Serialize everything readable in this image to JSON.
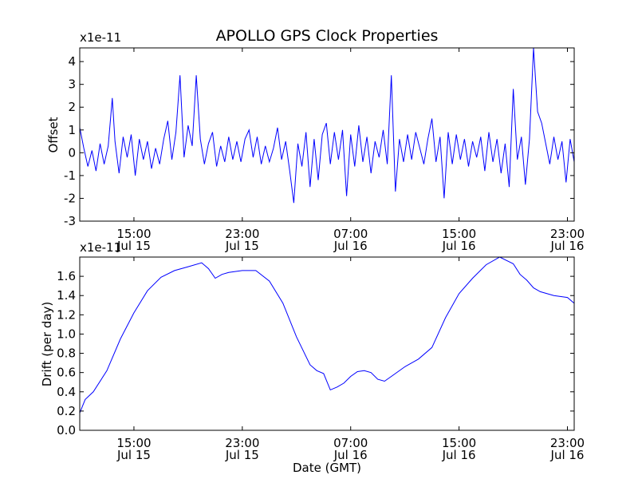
{
  "chart_data": {
    "title": "APOLLO GPS Clock Properties",
    "xlabel": "Date (GMT)",
    "x_tick_labels": [
      {
        "time": "15:00",
        "date": "Jul 15"
      },
      {
        "time": "23:00",
        "date": "Jul 15"
      },
      {
        "time": "07:00",
        "date": "Jul 16"
      },
      {
        "time": "15:00",
        "date": "Jul 16"
      },
      {
        "time": "23:00",
        "date": "Jul 16"
      }
    ],
    "x_tick_hours": [
      15,
      23,
      31,
      39,
      47
    ],
    "x_range_hours": [
      11,
      47.5
    ],
    "charts": [
      {
        "type": "line",
        "ylabel": "Offset",
        "multiplier": "x1e-11",
        "ylim": [
          -3,
          4.6
        ],
        "y_ticks": [
          -3,
          -2,
          -1,
          0,
          1,
          2,
          3,
          4
        ],
        "y_tick_labels": [
          "-3",
          "-2",
          "-1",
          "0",
          "1",
          "2",
          "3",
          "4"
        ],
        "color": "#0000ff",
        "series": [
          {
            "x": [
              11.0,
              11.3,
              11.6,
              11.9,
              12.2,
              12.5,
              12.8,
              13.1,
              13.4,
              13.6,
              13.9,
              14.2,
              14.5,
              14.8,
              15.1,
              15.4,
              15.7,
              16.0,
              16.3,
              16.6,
              16.9,
              17.2,
              17.5,
              17.8,
              18.1,
              18.4,
              18.7,
              19.0,
              19.3,
              19.6,
              19.9,
              20.2,
              20.5,
              20.8,
              21.1,
              21.4,
              21.7,
              22.0,
              22.3,
              22.6,
              22.9,
              23.2,
              23.5,
              23.8,
              24.1,
              24.4,
              24.7,
              25.0,
              25.3,
              25.6,
              25.9,
              26.2,
              26.5,
              26.8,
              27.1,
              27.4,
              27.7,
              28.0,
              28.3,
              28.6,
              28.9,
              29.2,
              29.5,
              29.8,
              30.1,
              30.4,
              30.7,
              31.0,
              31.3,
              31.6,
              31.9,
              32.2,
              32.5,
              32.8,
              33.1,
              33.4,
              33.7,
              34.0,
              34.3,
              34.6,
              34.9,
              35.2,
              35.5,
              35.8,
              36.1,
              36.4,
              36.7,
              37.0,
              37.3,
              37.6,
              37.9,
              38.2,
              38.5,
              38.8,
              39.1,
              39.4,
              39.7,
              40.0,
              40.3,
              40.6,
              40.9,
              41.2,
              41.5,
              41.8,
              42.1,
              42.4,
              42.7,
              43.0,
              43.3,
              43.6,
              43.9,
              44.2,
              44.5,
              44.8,
              45.1,
              45.4,
              45.7,
              46.0,
              46.3,
              46.6,
              46.9,
              47.2,
              47.5
            ],
            "y": [
              1.1,
              0.2,
              -0.6,
              0.1,
              -0.8,
              0.4,
              -0.5,
              0.3,
              2.4,
              0.5,
              -0.9,
              0.7,
              -0.2,
              0.8,
              -1.0,
              0.6,
              -0.3,
              0.5,
              -0.7,
              0.2,
              -0.5,
              0.6,
              1.4,
              -0.3,
              0.9,
              3.4,
              -0.2,
              1.2,
              0.3,
              3.4,
              0.6,
              -0.5,
              0.4,
              0.9,
              -0.6,
              0.3,
              -0.4,
              0.7,
              -0.3,
              0.5,
              -0.4,
              0.6,
              1.0,
              -0.2,
              0.7,
              -0.5,
              0.3,
              -0.4,
              0.2,
              1.1,
              -0.3,
              0.5,
              -0.8,
              -2.2,
              0.4,
              -0.6,
              0.9,
              -1.5,
              0.6,
              -1.2,
              0.8,
              1.3,
              -0.5,
              0.9,
              -0.3,
              1.0,
              -1.9,
              0.8,
              -0.6,
              1.2,
              -0.4,
              0.7,
              -0.9,
              0.5,
              -0.2,
              1.0,
              -0.5,
              3.4,
              -1.7,
              0.6,
              -0.4,
              0.8,
              -0.3,
              0.9,
              0.2,
              -0.5,
              0.6,
              1.5,
              -0.4,
              0.7,
              -2.0,
              0.9,
              -0.5,
              0.8,
              -0.3,
              0.6,
              -0.6,
              0.5,
              -0.2,
              0.7,
              -0.8,
              0.9,
              -0.4,
              0.6,
              -0.9,
              0.4,
              -1.5,
              2.8,
              -0.3,
              0.7,
              -1.4,
              0.6,
              4.6,
              1.8,
              1.3,
              0.4,
              -0.5,
              0.7,
              -0.3,
              0.5,
              -1.3,
              0.6,
              -0.4
            ]
          }
        ]
      },
      {
        "type": "line",
        "ylabel": "Drift (per day)",
        "multiplier": "x1e-11",
        "ylim": [
          0.0,
          1.8
        ],
        "y_ticks": [
          0.0,
          0.2,
          0.4,
          0.6,
          0.8,
          1.0,
          1.2,
          1.4,
          1.6
        ],
        "y_tick_labels": [
          "0.0",
          "0.2",
          "0.4",
          "0.6",
          "0.8",
          "1.0",
          "1.2",
          "1.4",
          "1.6"
        ],
        "color": "#0000ff",
        "series": [
          {
            "x": [
              11.0,
              11.4,
              12.0,
              13.0,
              14.0,
              15.0,
              16.0,
              17.0,
              18.0,
              19.0,
              20.0,
              20.5,
              21.0,
              21.5,
              22.0,
              23.0,
              24.0,
              25.0,
              26.0,
              27.0,
              28.0,
              28.5,
              29.0,
              29.5,
              30.0,
              30.5,
              31.0,
              31.5,
              32.0,
              32.5,
              33.0,
              33.5,
              34.0,
              35.0,
              36.0,
              37.0,
              38.0,
              39.0,
              40.0,
              41.0,
              42.0,
              43.0,
              43.5,
              44.0,
              44.5,
              45.0,
              46.0,
              47.0,
              47.5
            ],
            "y": [
              0.18,
              0.32,
              0.4,
              0.62,
              0.95,
              1.22,
              1.45,
              1.59,
              1.66,
              1.7,
              1.74,
              1.68,
              1.58,
              1.62,
              1.64,
              1.66,
              1.66,
              1.55,
              1.32,
              0.97,
              0.68,
              0.62,
              0.59,
              0.42,
              0.45,
              0.49,
              0.56,
              0.61,
              0.62,
              0.6,
              0.53,
              0.51,
              0.56,
              0.66,
              0.74,
              0.86,
              1.17,
              1.42,
              1.58,
              1.72,
              1.8,
              1.73,
              1.62,
              1.56,
              1.48,
              1.44,
              1.4,
              1.38,
              1.32
            ]
          }
        ]
      }
    ]
  }
}
